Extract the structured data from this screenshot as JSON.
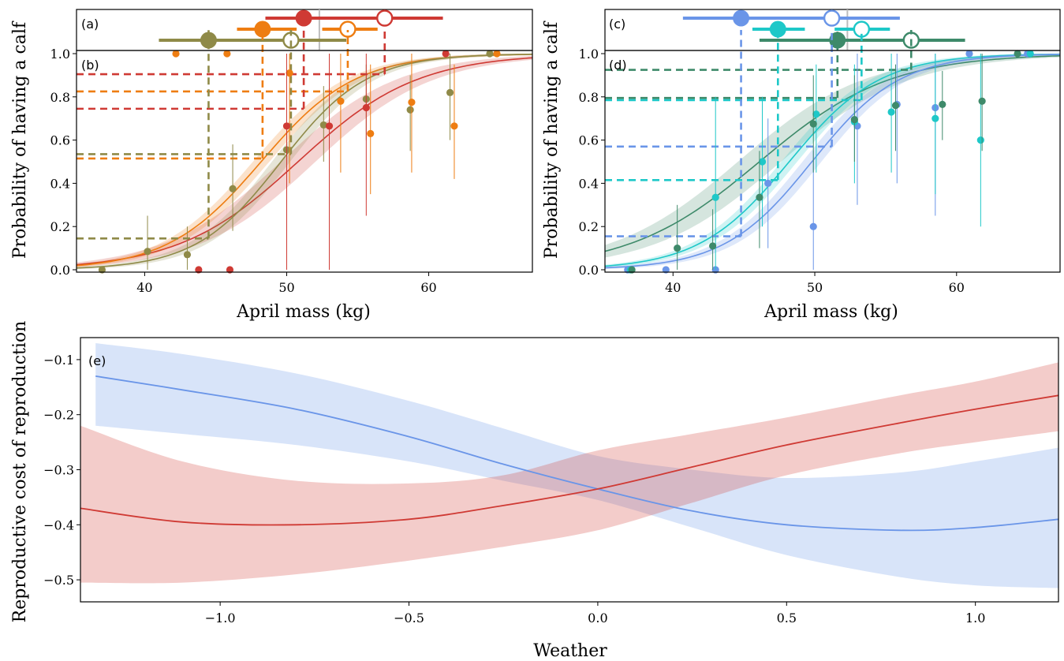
{
  "figure": {
    "ylabel_top": "Probability of having a calf",
    "xlabel_top": "April mass (kg)",
    "ylabel_bottom": "Reproductive cost of reproduction",
    "xlabel_bottom": "Weather"
  },
  "colors": {
    "red": "#cf3a34",
    "orange": "#ee7d12",
    "olive": "#8f8a48",
    "blue": "#6a95e8",
    "cyan": "#1ec8c8",
    "green": "#3e8a6a"
  },
  "chart_data": [
    {
      "panel": "(a)",
      "type": "scatter",
      "description_kind": "threshold-estimates",
      "xlim": [
        35.2,
        67.3
      ],
      "rows": [
        {
          "row": 0,
          "series": [
            {
              "color": "red",
              "filled": true,
              "x": 51.2,
              "xmin": 48.5,
              "xmax": 53.9
            },
            {
              "color": "red",
              "filled": false,
              "x": 56.9,
              "xmin": 53.1,
              "xmax": 61.0
            }
          ]
        },
        {
          "row": 1,
          "series": [
            {
              "color": "orange",
              "filled": true,
              "x": 48.3,
              "xmin": 46.5,
              "xmax": 50.7
            },
            {
              "color": "orange",
              "filled": false,
              "x": 54.3,
              "xmin": 52.5,
              "xmax": 56.4
            }
          ]
        },
        {
          "row": 2,
          "series": [
            {
              "color": "olive",
              "filled": true,
              "x": 44.5,
              "xmin": 41.0,
              "xmax": 48.5
            },
            {
              "color": "olive",
              "filled": false,
              "x": 50.3,
              "xmin": 46.3,
              "xmax": 54.2
            }
          ]
        }
      ],
      "reference_x": 52.3
    },
    {
      "panel": "(b)",
      "type": "line",
      "xlim": [
        35.2,
        67.3
      ],
      "ylim": [
        0,
        1
      ],
      "xticks": [
        "40",
        "50",
        "60"
      ],
      "yticks": [
        "0.0",
        "0.2",
        "0.4",
        "0.6",
        "0.8",
        "1.0"
      ],
      "series": [
        {
          "color": "red",
          "mid": 50.8,
          "scale": 4.2,
          "band": 0.07
        },
        {
          "color": "orange",
          "mid": 48.2,
          "scale": 3.3,
          "band": 0.04
        },
        {
          "color": "olive",
          "mid": 49.6,
          "scale": 3.0,
          "band": 0.05
        }
      ],
      "guides": [
        {
          "color": "red",
          "x": 51.2,
          "y": 0.745
        },
        {
          "color": "red",
          "x": 56.9,
          "y": 0.905
        },
        {
          "color": "orange",
          "x": 48.3,
          "y": 0.515
        },
        {
          "color": "orange",
          "x": 54.3,
          "y": 0.825
        },
        {
          "color": "olive",
          "x": 44.5,
          "y": 0.145
        },
        {
          "color": "olive",
          "x": 50.3,
          "y": 0.535
        }
      ],
      "points": [
        {
          "color": "olive",
          "x": 37.0,
          "y": 0.0
        },
        {
          "color": "olive",
          "x": 40.2,
          "y": 0.085,
          "lo": 0.0,
          "hi": 0.25
        },
        {
          "color": "olive",
          "x": 43.0,
          "y": 0.07,
          "lo": 0.0,
          "hi": 0.2
        },
        {
          "color": "olive",
          "x": 46.2,
          "y": 0.375,
          "lo": 0.18,
          "hi": 0.58
        },
        {
          "color": "olive",
          "x": 50.0,
          "y": 0.555,
          "lo": 0.35,
          "hi": 0.75
        },
        {
          "color": "olive",
          "x": 52.6,
          "y": 0.67,
          "lo": 0.5,
          "hi": 0.85
        },
        {
          "color": "olive",
          "x": 55.6,
          "y": 0.79,
          "lo": 0.6,
          "hi": 0.95
        },
        {
          "color": "olive",
          "x": 58.7,
          "y": 0.74,
          "lo": 0.55,
          "hi": 0.9
        },
        {
          "color": "olive",
          "x": 61.5,
          "y": 0.82,
          "lo": 0.6,
          "hi": 1.0
        },
        {
          "color": "olive",
          "x": 64.3,
          "y": 1.0
        },
        {
          "color": "orange",
          "x": 42.2,
          "y": 1.0
        },
        {
          "color": "orange",
          "x": 45.8,
          "y": 1.0
        },
        {
          "color": "orange",
          "x": 50.2,
          "y": 0.91,
          "lo": 0.4,
          "hi": 1.0
        },
        {
          "color": "orange",
          "x": 53.8,
          "y": 0.78,
          "lo": 0.45,
          "hi": 1.0
        },
        {
          "color": "orange",
          "x": 55.9,
          "y": 0.63,
          "lo": 0.35,
          "hi": 0.95
        },
        {
          "color": "orange",
          "x": 58.8,
          "y": 0.775,
          "lo": 0.45,
          "hi": 1.0
        },
        {
          "color": "orange",
          "x": 61.8,
          "y": 0.665,
          "lo": 0.42,
          "hi": 0.95
        },
        {
          "color": "orange",
          "x": 64.8,
          "y": 1.0
        },
        {
          "color": "red",
          "x": 43.8,
          "y": 0.0
        },
        {
          "color": "red",
          "x": 46.0,
          "y": 0.0
        },
        {
          "color": "red",
          "x": 50.0,
          "y": 0.665,
          "lo": 0.0,
          "hi": 1.0
        },
        {
          "color": "red",
          "x": 53.0,
          "y": 0.665,
          "lo": 0.0,
          "hi": 1.0
        },
        {
          "color": "red",
          "x": 55.6,
          "y": 0.75,
          "lo": 0.25,
          "hi": 1.0
        },
        {
          "color": "red",
          "x": 61.2,
          "y": 1.0
        }
      ]
    },
    {
      "panel": "(c)",
      "type": "scatter",
      "description_kind": "threshold-estimates",
      "xlim": [
        35.2,
        67.3
      ],
      "rows": [
        {
          "row": 0,
          "series": [
            {
              "color": "blue",
              "filled": true,
              "x": 44.8,
              "xmin": 40.7,
              "xmax": 48.2
            },
            {
              "color": "blue",
              "filled": false,
              "x": 51.2,
              "xmin": 46.8,
              "xmax": 56.0
            }
          ]
        },
        {
          "row": 1,
          "series": [
            {
              "color": "cyan",
              "filled": true,
              "x": 47.4,
              "xmin": 45.6,
              "xmax": 49.3
            },
            {
              "color": "cyan",
              "filled": false,
              "x": 53.3,
              "xmin": 51.4,
              "xmax": 55.3
            }
          ]
        },
        {
          "row": 2,
          "series": [
            {
              "color": "green",
              "filled": true,
              "x": 51.6,
              "xmin": 46.1,
              "xmax": 53.8
            },
            {
              "color": "green",
              "filled": false,
              "x": 56.8,
              "xmin": 53.0,
              "xmax": 60.6
            }
          ]
        }
      ],
      "reference_x": 52.3
    },
    {
      "panel": "(d)",
      "type": "line",
      "xlim": [
        35.2,
        67.3
      ],
      "ylim": [
        0,
        1
      ],
      "xticks": [
        "40",
        "50",
        "60"
      ],
      "yticks": [
        "0.0",
        "0.2",
        "0.4",
        "0.6",
        "0.8",
        "1.0"
      ],
      "series": [
        {
          "color": "green",
          "mid": 46.1,
          "scale": 4.6,
          "band": 0.08
        },
        {
          "color": "cyan",
          "mid": 48.2,
          "scale": 3.2,
          "band": 0.04
        },
        {
          "color": "blue",
          "mid": 49.8,
          "scale": 3.1,
          "band": 0.05
        }
      ],
      "guides": [
        {
          "color": "blue",
          "x": 44.8,
          "y": 0.155
        },
        {
          "color": "blue",
          "x": 51.2,
          "y": 0.57
        },
        {
          "color": "cyan",
          "x": 47.4,
          "y": 0.415
        },
        {
          "color": "cyan",
          "x": 53.3,
          "y": 0.785
        },
        {
          "color": "green",
          "x": 51.6,
          "y": 0.795
        },
        {
          "color": "green",
          "x": 56.8,
          "y": 0.925
        }
      ],
      "points": [
        {
          "color": "blue",
          "x": 36.8,
          "y": 0.0
        },
        {
          "color": "blue",
          "x": 39.5,
          "y": 0.0
        },
        {
          "color": "blue",
          "x": 43.0,
          "y": 0.0
        },
        {
          "color": "blue",
          "x": 46.7,
          "y": 0.4,
          "lo": 0.1,
          "hi": 0.7
        },
        {
          "color": "blue",
          "x": 49.9,
          "y": 0.2,
          "lo": 0.0,
          "hi": 0.55
        },
        {
          "color": "blue",
          "x": 53.0,
          "y": 0.665,
          "lo": 0.3,
          "hi": 1.0
        },
        {
          "color": "blue",
          "x": 55.8,
          "y": 0.765,
          "lo": 0.4,
          "hi": 1.0
        },
        {
          "color": "blue",
          "x": 58.5,
          "y": 0.75,
          "lo": 0.25,
          "hi": 1.0
        },
        {
          "color": "blue",
          "x": 60.9,
          "y": 1.0
        },
        {
          "color": "blue",
          "x": 65.0,
          "y": 1.0
        },
        {
          "color": "cyan",
          "x": 37.0,
          "y": 0.0
        },
        {
          "color": "cyan",
          "x": 43.0,
          "y": 0.335,
          "lo": 0.0,
          "hi": 0.8
        },
        {
          "color": "cyan",
          "x": 46.3,
          "y": 0.5,
          "lo": 0.2,
          "hi": 0.8
        },
        {
          "color": "cyan",
          "x": 50.1,
          "y": 0.72,
          "lo": 0.45,
          "hi": 0.95
        },
        {
          "color": "cyan",
          "x": 52.8,
          "y": 0.685,
          "lo": 0.4,
          "hi": 0.95
        },
        {
          "color": "cyan",
          "x": 55.4,
          "y": 0.73,
          "lo": 0.45,
          "hi": 1.0
        },
        {
          "color": "cyan",
          "x": 58.5,
          "y": 0.7,
          "lo": 0.35,
          "hi": 1.0
        },
        {
          "color": "cyan",
          "x": 61.7,
          "y": 0.6,
          "lo": 0.2,
          "hi": 1.0
        },
        {
          "color": "cyan",
          "x": 65.2,
          "y": 1.0
        },
        {
          "color": "green",
          "x": 37.1,
          "y": 0.0
        },
        {
          "color": "green",
          "x": 40.3,
          "y": 0.1,
          "lo": 0.0,
          "hi": 0.3
        },
        {
          "color": "green",
          "x": 42.8,
          "y": 0.11,
          "lo": 0.0,
          "hi": 0.28
        },
        {
          "color": "green",
          "x": 46.1,
          "y": 0.335,
          "lo": 0.1,
          "hi": 0.55
        },
        {
          "color": "green",
          "x": 49.9,
          "y": 0.675,
          "lo": 0.45,
          "hi": 0.9
        },
        {
          "color": "green",
          "x": 52.8,
          "y": 0.695,
          "lo": 0.5,
          "hi": 0.9
        },
        {
          "color": "green",
          "x": 55.7,
          "y": 0.76,
          "lo": 0.55,
          "hi": 0.95
        },
        {
          "color": "green",
          "x": 59.0,
          "y": 0.765,
          "lo": 0.6,
          "hi": 0.92
        },
        {
          "color": "green",
          "x": 61.8,
          "y": 0.78,
          "lo": 0.55,
          "hi": 1.0
        },
        {
          "color": "green",
          "x": 64.3,
          "y": 1.0
        }
      ]
    },
    {
      "panel": "(e)",
      "type": "line",
      "xlim": [
        -1.37,
        1.22
      ],
      "ylim": [
        -0.54,
        -0.06
      ],
      "xticks": [
        "−1.0",
        "−0.5",
        "0.0",
        "0.5",
        "1.0"
      ],
      "xtick_values": [
        -1.0,
        -0.5,
        0.0,
        0.5,
        1.0
      ],
      "yticks": [
        "−0.1",
        "−0.2",
        "−0.3",
        "−0.4",
        "−0.5"
      ],
      "ytick_values": [
        -0.1,
        -0.2,
        -0.3,
        -0.4,
        -0.5
      ],
      "series": [
        {
          "color": "blue",
          "x": [
            -1.33,
            -1.1,
            -0.8,
            -0.5,
            -0.25,
            0.0,
            0.25,
            0.5,
            0.8,
            1.0,
            1.22
          ],
          "y": [
            -0.13,
            -0.155,
            -0.19,
            -0.24,
            -0.29,
            -0.335,
            -0.375,
            -0.4,
            -0.41,
            -0.405,
            -0.39
          ],
          "lo": [
            -0.22,
            -0.235,
            -0.255,
            -0.285,
            -0.32,
            -0.355,
            -0.405,
            -0.455,
            -0.495,
            -0.51,
            -0.515
          ],
          "hi": [
            -0.07,
            -0.09,
            -0.125,
            -0.175,
            -0.225,
            -0.275,
            -0.3,
            -0.315,
            -0.305,
            -0.285,
            -0.26
          ]
        },
        {
          "color": "red",
          "x": [
            -1.37,
            -1.1,
            -0.8,
            -0.5,
            -0.25,
            0.0,
            0.25,
            0.5,
            0.8,
            1.0,
            1.22
          ],
          "y": [
            -0.37,
            -0.395,
            -0.4,
            -0.39,
            -0.365,
            -0.335,
            -0.295,
            -0.255,
            -0.215,
            -0.19,
            -0.165
          ],
          "lo": [
            -0.505,
            -0.505,
            -0.49,
            -0.465,
            -0.44,
            -0.41,
            -0.36,
            -0.31,
            -0.27,
            -0.25,
            -0.23
          ],
          "hi": [
            -0.22,
            -0.285,
            -0.32,
            -0.325,
            -0.31,
            -0.265,
            -0.235,
            -0.205,
            -0.165,
            -0.14,
            -0.105
          ]
        }
      ]
    }
  ]
}
